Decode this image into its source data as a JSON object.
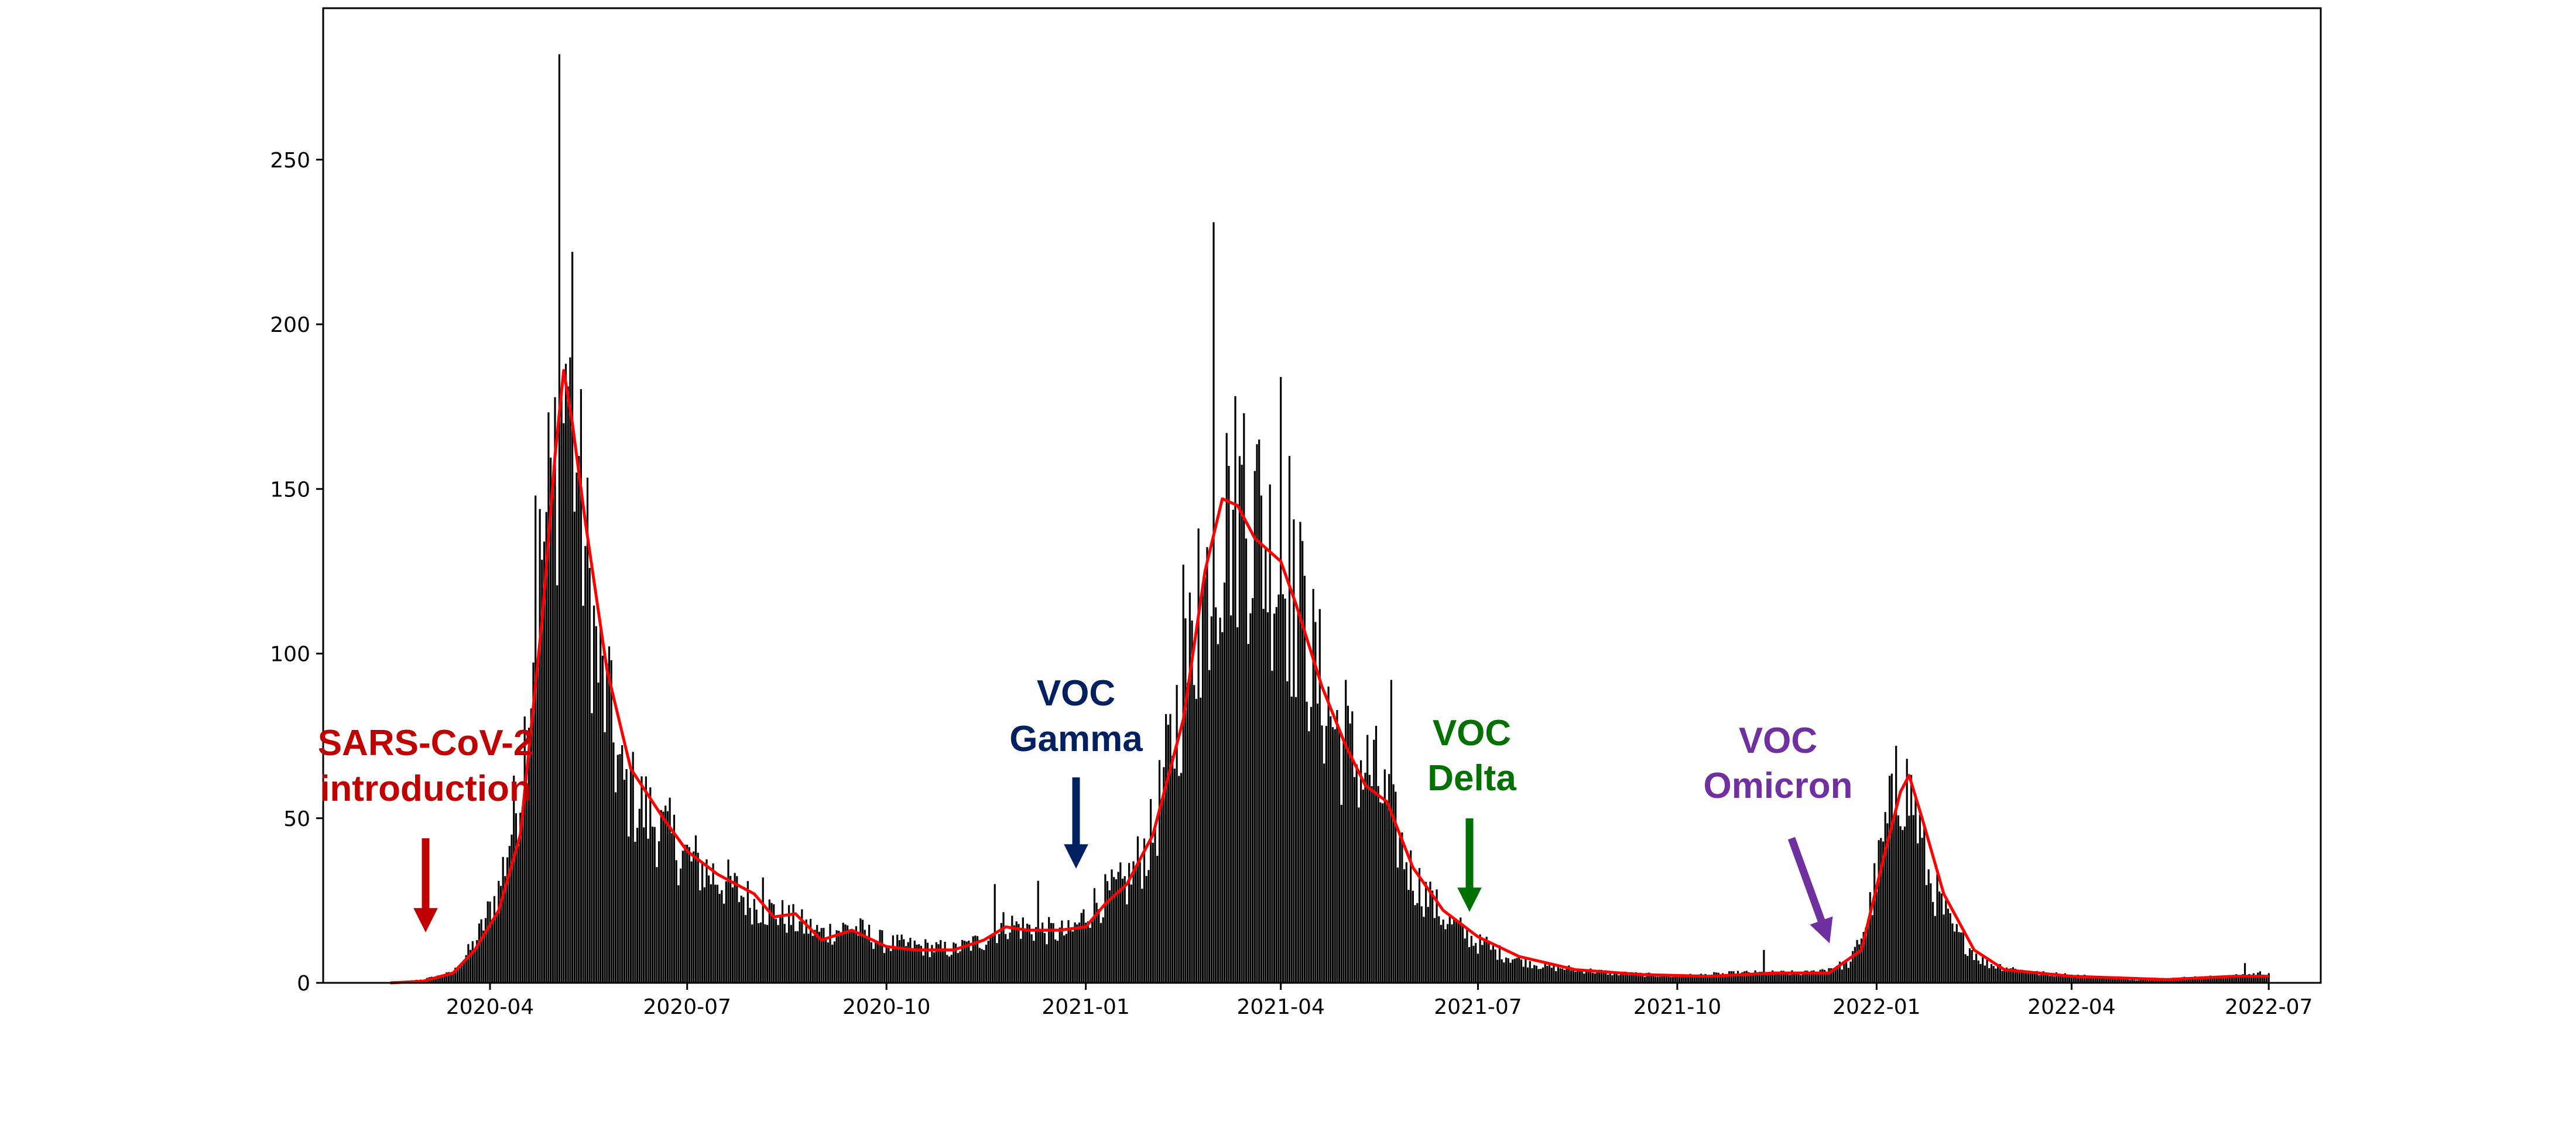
{
  "chart_data": {
    "type": "bar",
    "title": "",
    "xlabel": "",
    "ylabel": "",
    "x_range": [
      "2020-01-15",
      "2022-07-25"
    ],
    "ylim": [
      0,
      296
    ],
    "y_ticks": [
      0,
      50,
      100,
      150,
      200,
      250
    ],
    "x_ticks": [
      "2020-04",
      "2020-07",
      "2020-10",
      "2021-01",
      "2021-04",
      "2021-07",
      "2021-10",
      "2022-01",
      "2022-04",
      "2022-07"
    ],
    "x_tick_dates": [
      "2020-04-01",
      "2020-07-01",
      "2020-10-01",
      "2021-01-01",
      "2021-04-01",
      "2021-07-01",
      "2021-10-01",
      "2022-01-01",
      "2022-04-01",
      "2022-07-01"
    ],
    "grid": false,
    "series": [
      {
        "kind": "bar",
        "color": "#000000",
        "note": "daily counts (approximate keyframes, interpolated daily)",
        "keyframes": [
          [
            "2020-02-15",
            0
          ],
          [
            "2020-03-01",
            1
          ],
          [
            "2020-03-15",
            3
          ],
          [
            "2020-03-25",
            12
          ],
          [
            "2020-04-05",
            28
          ],
          [
            "2020-04-15",
            60
          ],
          [
            "2020-04-25",
            130
          ],
          [
            "2020-05-03",
            170
          ],
          [
            "2020-05-07",
            180
          ],
          [
            "2020-05-12",
            150
          ],
          [
            "2020-05-20",
            100
          ],
          [
            "2020-06-01",
            60
          ],
          [
            "2020-06-15",
            50
          ],
          [
            "2020-07-01",
            38
          ],
          [
            "2020-07-15",
            32
          ],
          [
            "2020-08-01",
            24
          ],
          [
            "2020-08-15",
            20
          ],
          [
            "2020-09-01",
            15
          ],
          [
            "2020-09-15",
            17
          ],
          [
            "2020-10-01",
            12
          ],
          [
            "2020-10-15",
            11
          ],
          [
            "2020-11-01",
            10
          ],
          [
            "2020-11-15",
            13
          ],
          [
            "2020-11-25",
            18
          ],
          [
            "2020-12-10",
            16
          ],
          [
            "2020-12-25",
            15
          ],
          [
            "2021-01-05",
            24
          ],
          [
            "2021-01-20",
            30
          ],
          [
            "2021-02-01",
            45
          ],
          [
            "2021-02-15",
            90
          ],
          [
            "2021-03-01",
            130
          ],
          [
            "2021-03-10",
            145
          ],
          [
            "2021-03-20",
            140
          ],
          [
            "2021-04-01",
            125
          ],
          [
            "2021-04-10",
            110
          ],
          [
            "2021-04-20",
            88
          ],
          [
            "2021-05-01",
            70
          ],
          [
            "2021-05-15",
            62
          ],
          [
            "2021-06-01",
            32
          ],
          [
            "2021-06-15",
            20
          ],
          [
            "2021-07-01",
            12
          ],
          [
            "2021-07-15",
            8
          ],
          [
            "2021-08-01",
            5
          ],
          [
            "2021-09-01",
            3
          ],
          [
            "2021-10-01",
            2
          ],
          [
            "2021-11-01",
            3
          ],
          [
            "2021-12-01",
            3
          ],
          [
            "2021-12-20",
            6
          ],
          [
            "2021-12-28",
            20
          ],
          [
            "2022-01-05",
            45
          ],
          [
            "2022-01-12",
            62
          ],
          [
            "2022-01-18",
            55
          ],
          [
            "2022-01-25",
            32
          ],
          [
            "2022-02-05",
            16
          ],
          [
            "2022-02-20",
            6
          ],
          [
            "2022-03-15",
            3
          ],
          [
            "2022-05-01",
            1
          ],
          [
            "2022-06-15",
            2
          ],
          [
            "2022-06-28",
            3
          ],
          [
            "2022-07-01",
            3
          ]
        ],
        "spikes": [
          [
            "2020-04-22",
            148
          ],
          [
            "2020-04-26",
            134
          ],
          [
            "2020-04-30",
            150
          ],
          [
            "2020-05-03",
            282
          ],
          [
            "2020-05-06",
            188
          ],
          [
            "2020-05-09",
            222
          ],
          [
            "2020-05-12",
            160
          ],
          [
            "2020-05-27",
            98
          ],
          [
            "2020-06-05",
            65
          ],
          [
            "2020-06-20",
            52
          ],
          [
            "2020-08-05",
            32
          ],
          [
            "2020-11-20",
            30
          ],
          [
            "2020-12-10",
            31
          ],
          [
            "2021-02-15",
            127
          ],
          [
            "2021-02-22",
            138
          ],
          [
            "2021-03-01",
            231
          ],
          [
            "2021-03-08",
            157
          ],
          [
            "2021-03-15",
            173
          ],
          [
            "2021-03-22",
            165
          ],
          [
            "2021-04-01",
            184
          ],
          [
            "2021-04-05",
            160
          ],
          [
            "2021-04-10",
            140
          ],
          [
            "2021-05-01",
            92
          ],
          [
            "2021-05-22",
            92
          ],
          [
            "2021-06-10",
            28
          ],
          [
            "2021-07-05",
            14
          ],
          [
            "2021-11-10",
            10
          ],
          [
            "2022-01-10",
            72
          ],
          [
            "2022-06-20",
            6
          ]
        ]
      },
      {
        "kind": "line",
        "color": "#ff0000",
        "note": "moving average",
        "points": [
          [
            "2020-02-15",
            0
          ],
          [
            "2020-03-01",
            0.5
          ],
          [
            "2020-03-15",
            3
          ],
          [
            "2020-03-25",
            10
          ],
          [
            "2020-04-05",
            22
          ],
          [
            "2020-04-15",
            45
          ],
          [
            "2020-04-25",
            110
          ],
          [
            "2020-05-01",
            160
          ],
          [
            "2020-05-05",
            186
          ],
          [
            "2020-05-09",
            170
          ],
          [
            "2020-05-15",
            140
          ],
          [
            "2020-05-25",
            95
          ],
          [
            "2020-06-05",
            65
          ],
          [
            "2020-06-20",
            50
          ],
          [
            "2020-07-01",
            40
          ],
          [
            "2020-07-15",
            33
          ],
          [
            "2020-08-01",
            27
          ],
          [
            "2020-08-10",
            20
          ],
          [
            "2020-08-20",
            21
          ],
          [
            "2020-09-01",
            13
          ],
          [
            "2020-09-15",
            16
          ],
          [
            "2020-10-01",
            11
          ],
          [
            "2020-10-15",
            10
          ],
          [
            "2020-11-01",
            10
          ],
          [
            "2020-11-15",
            13
          ],
          [
            "2020-11-25",
            17
          ],
          [
            "2020-12-05",
            16
          ],
          [
            "2020-12-20",
            16
          ],
          [
            "2021-01-01",
            17
          ],
          [
            "2021-01-10",
            24
          ],
          [
            "2021-01-20",
            30
          ],
          [
            "2021-02-01",
            45
          ],
          [
            "2021-02-15",
            80
          ],
          [
            "2021-02-25",
            125
          ],
          [
            "2021-03-05",
            147
          ],
          [
            "2021-03-12",
            145
          ],
          [
            "2021-03-20",
            135
          ],
          [
            "2021-04-01",
            128
          ],
          [
            "2021-04-08",
            115
          ],
          [
            "2021-04-20",
            90
          ],
          [
            "2021-05-01",
            72
          ],
          [
            "2021-05-10",
            60
          ],
          [
            "2021-05-20",
            55
          ],
          [
            "2021-06-01",
            35
          ],
          [
            "2021-06-15",
            22
          ],
          [
            "2021-07-01",
            14
          ],
          [
            "2021-07-20",
            8
          ],
          [
            "2021-08-15",
            4
          ],
          [
            "2021-09-15",
            2.5
          ],
          [
            "2021-10-15",
            2
          ],
          [
            "2021-11-15",
            3
          ],
          [
            "2021-12-10",
            3
          ],
          [
            "2021-12-25",
            10
          ],
          [
            "2022-01-05",
            40
          ],
          [
            "2022-01-12",
            58
          ],
          [
            "2022-01-16",
            63
          ],
          [
            "2022-01-22",
            50
          ],
          [
            "2022-02-01",
            27
          ],
          [
            "2022-02-15",
            10
          ],
          [
            "2022-03-01",
            4
          ],
          [
            "2022-04-01",
            2
          ],
          [
            "2022-05-15",
            1
          ],
          [
            "2022-06-15",
            2
          ],
          [
            "2022-07-01",
            2
          ]
        ]
      }
    ],
    "annotations": [
      {
        "id": "sars",
        "text_lines": [
          "SARS-CoV-2",
          "introduction"
        ],
        "date": "2020-02-25",
        "color": "#c00000",
        "arrow": "down"
      },
      {
        "id": "gamma",
        "text_lines": [
          "VOC",
          "Gamma"
        ],
        "date": "2020-12-30",
        "color": "#002060",
        "arrow": "down"
      },
      {
        "id": "delta",
        "text_lines": [
          "VOC",
          "Delta"
        ],
        "date": "2021-07-02",
        "color": "#007000",
        "arrow": "down"
      },
      {
        "id": "omicron",
        "text_lines": [
          "VOC",
          "Omicron"
        ],
        "date": "2021-12-20",
        "color": "#7030a0",
        "arrow": "diagonal"
      }
    ]
  }
}
